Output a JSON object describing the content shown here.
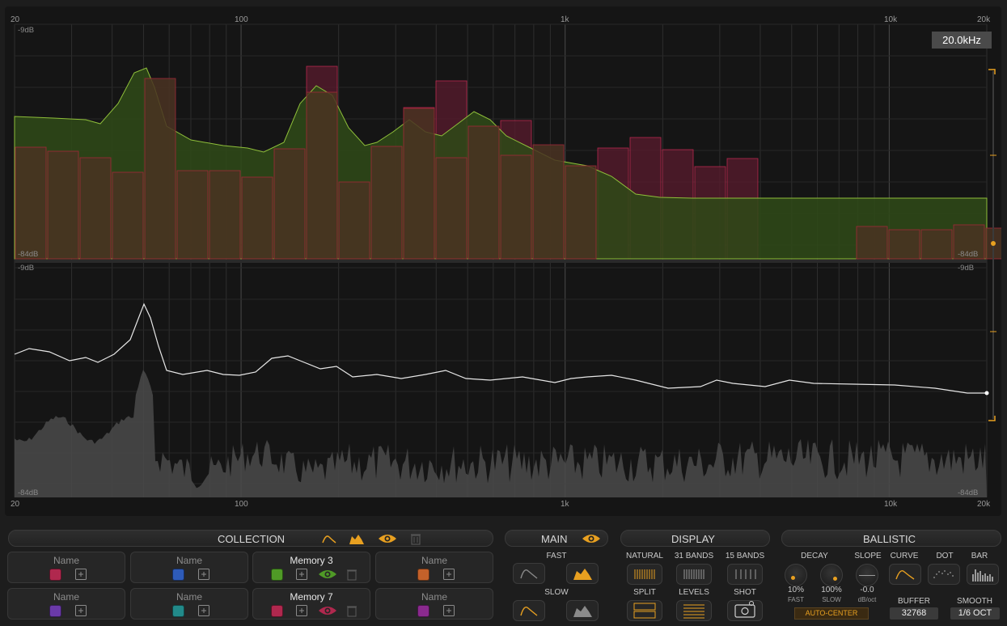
{
  "colors": {
    "accent": "#e8a020",
    "green_fill": "#2f4a17",
    "red_bar": "#5a1b2e",
    "orange_bar": "#4a3222",
    "background": "#151515",
    "panel": "#1d1d1d"
  },
  "analyzer": {
    "freq_ticks": [
      "20",
      "100",
      "1k",
      "10k",
      "20k"
    ],
    "top_db_max": "-9dB",
    "top_db_min": "-84dB",
    "bottom_db_max": "-9dB",
    "bottom_db_min": "-84dB",
    "right_db_max": "-9dB",
    "right_db_min": "-84dB",
    "cursor_freq": "20.0kHz"
  },
  "collection": {
    "title": "COLLECTION",
    "icons": [
      "curve-outline-icon",
      "curve-filled-icon",
      "eye-icon",
      "trash-icon"
    ],
    "slots": [
      {
        "name": "Name",
        "color": "#b0284e",
        "active": false
      },
      {
        "name": "Name",
        "color": "#2e5bb8",
        "active": false
      },
      {
        "name": "Memory 3",
        "color": "#4f9a26",
        "active": true
      },
      {
        "name": "Name",
        "color": "#c4612a",
        "active": false
      },
      {
        "name": "Name",
        "color": "#6a3aa8",
        "active": false
      },
      {
        "name": "Name",
        "color": "#228a8a",
        "active": false
      },
      {
        "name": "Memory 7",
        "color": "#b0284e",
        "active": true
      },
      {
        "name": "Name",
        "color": "#8a2a8e",
        "active": false
      }
    ]
  },
  "main": {
    "title": "MAIN",
    "fast_label": "FAST",
    "slow_label": "SLOW"
  },
  "display": {
    "title": "DISPLAY",
    "natural": "NATURAL",
    "bands31": "31 BANDS",
    "bands15": "15 BANDS",
    "split": "SPLIT",
    "levels": "LEVELS",
    "shot": "SHOT"
  },
  "ballistic": {
    "title": "BALLISTIC",
    "decay": "DECAY",
    "slope": "SLOPE",
    "curve": "CURVE",
    "dot": "DOT",
    "bar": "BAR",
    "decay_fast_value": "10%",
    "decay_fast_label": "FAST",
    "decay_slow_value": "100%",
    "decay_slow_label": "SLOW",
    "slope_value": "-0.0",
    "slope_unit": "dB/oct",
    "buffer_label": "BUFFER",
    "buffer_value": "32768",
    "smooth_label": "SMOOTH",
    "smooth_value": "1/6 OCT",
    "auto_center": "AUTO-CENTER"
  }
}
